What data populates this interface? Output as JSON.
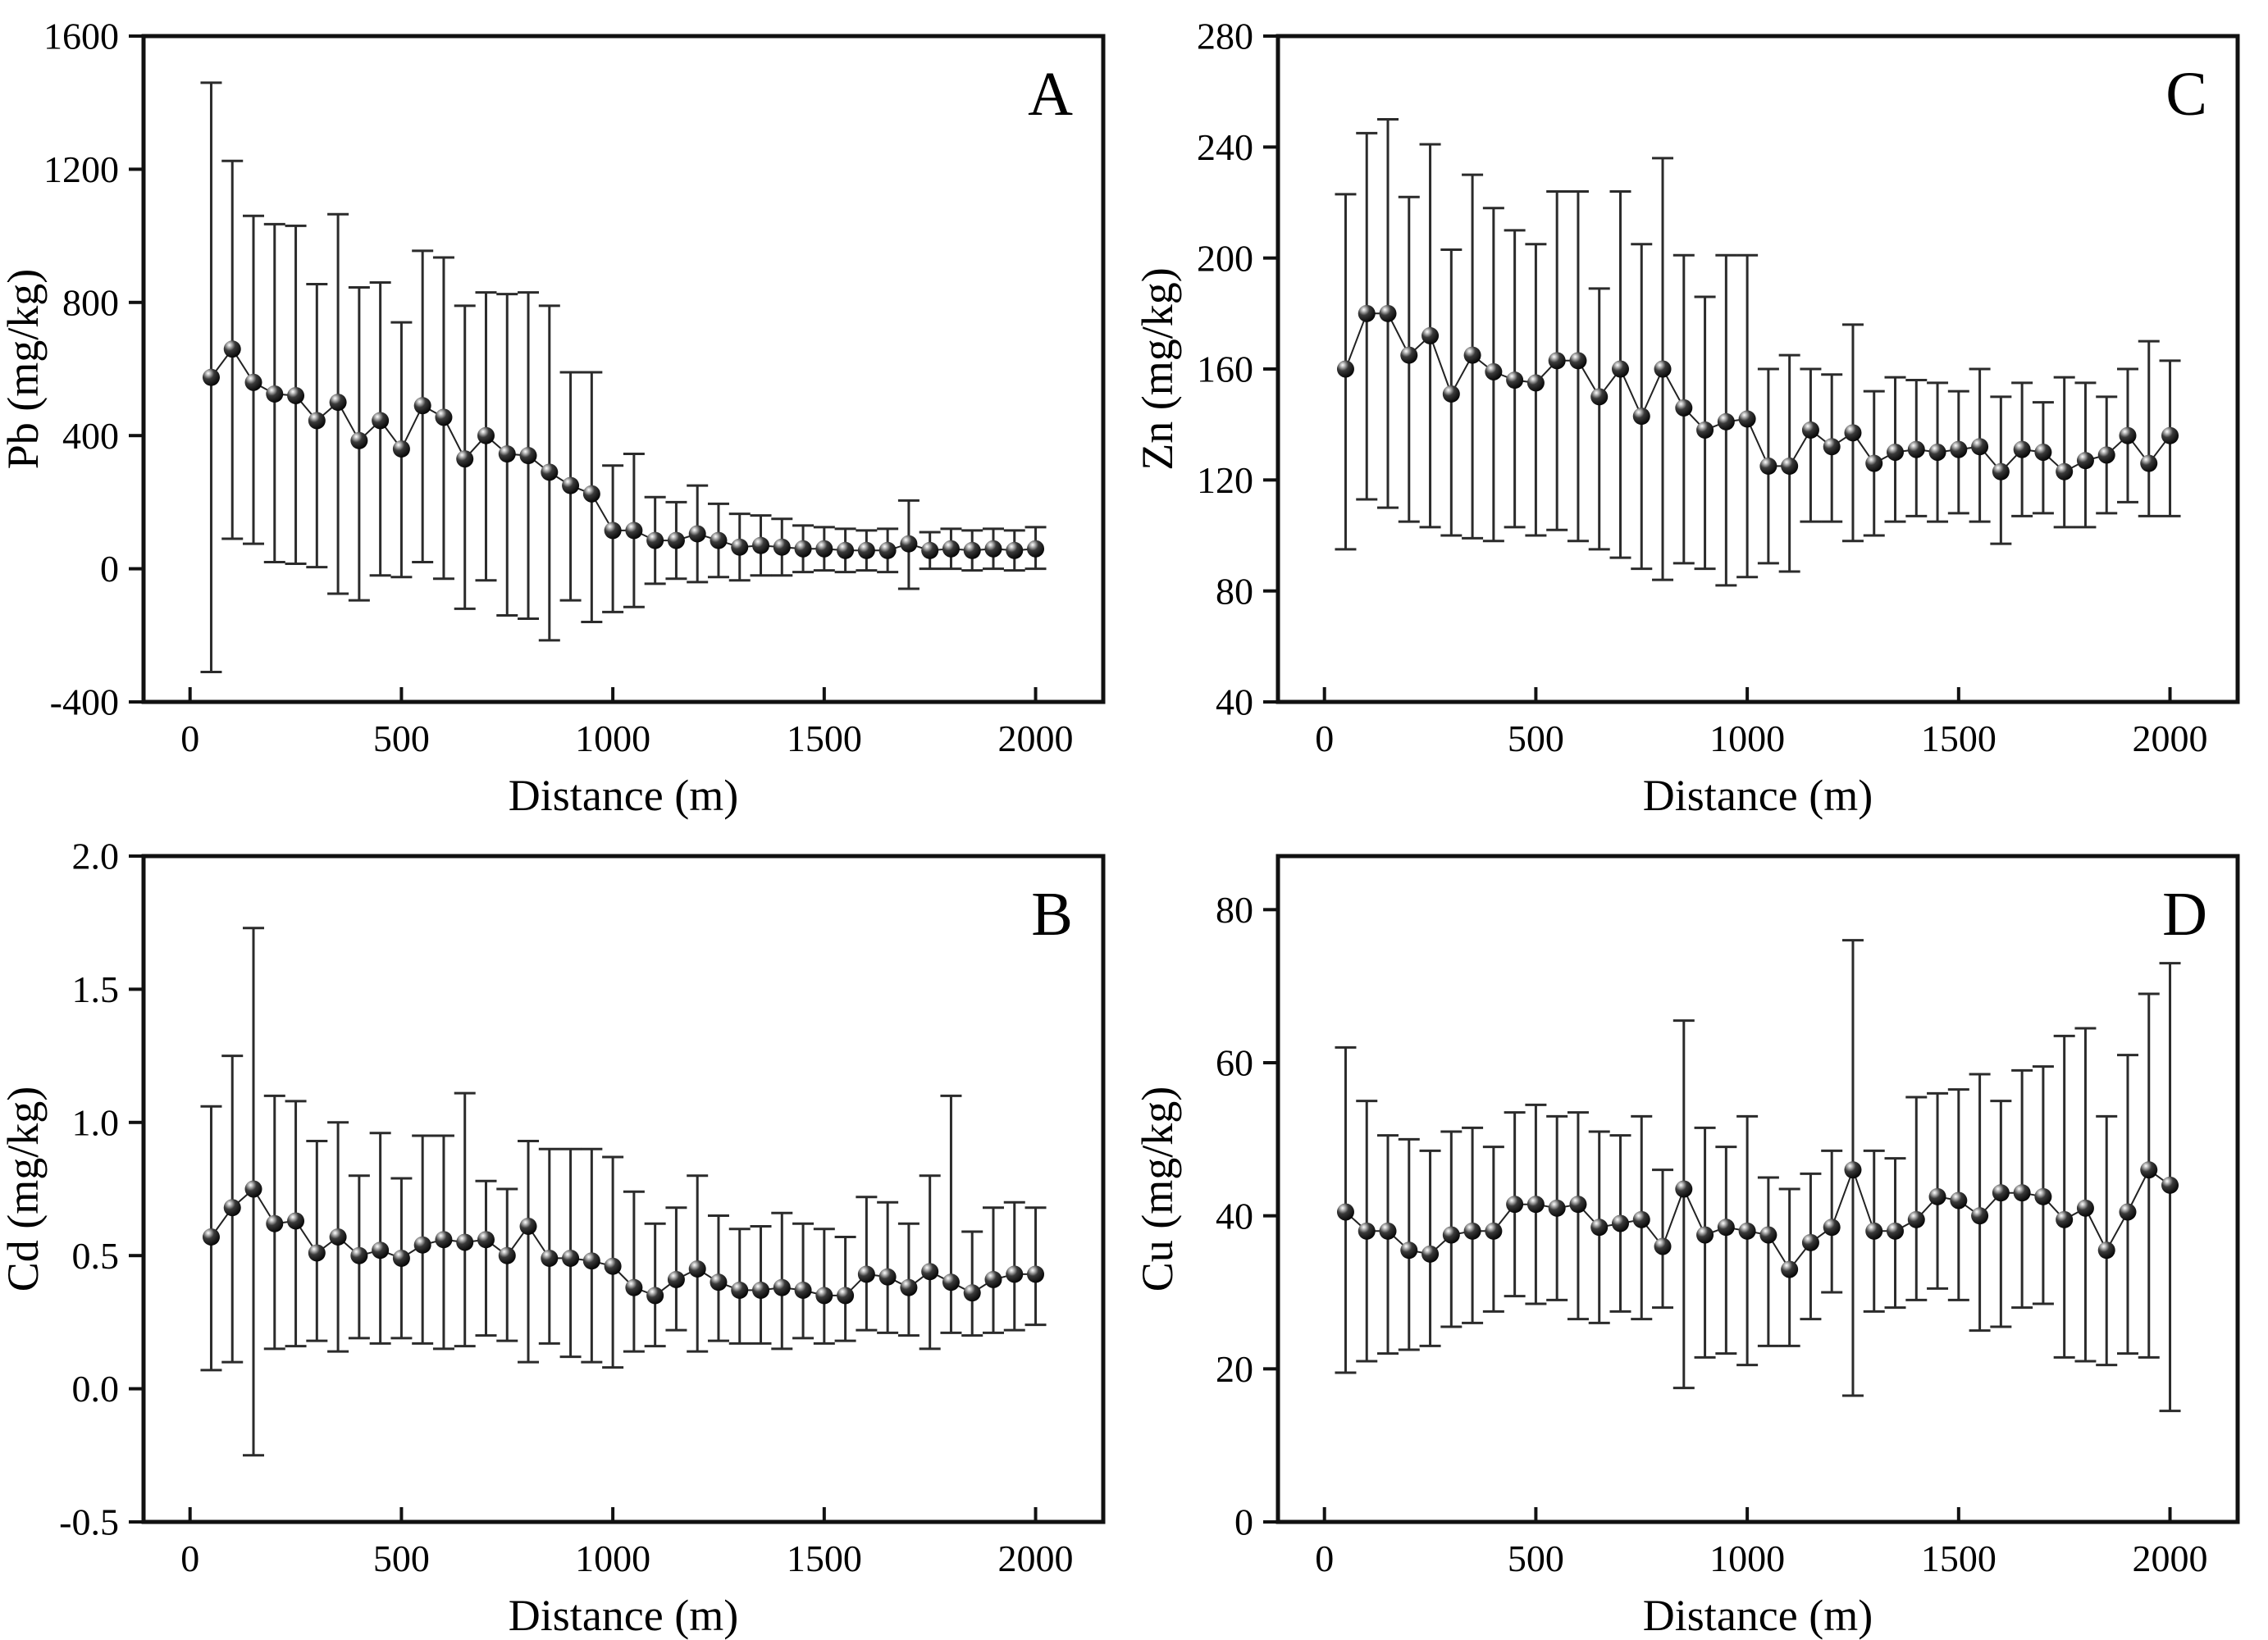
{
  "page": {
    "background": "#ffffff",
    "foreground": "#000000",
    "figure_type": "2x2 panel scatter plots with asymmetric error bars",
    "marker_style": "black-sphere-with-highlight"
  },
  "chart_data": [
    {
      "id": "pb",
      "panel_letter": "A",
      "type": "line",
      "position": "top-left",
      "xlabel": "Distance (m)",
      "ylabel": "Pb (mg/kg)",
      "xlim": [
        -110,
        2160
      ],
      "ylim": [
        -400,
        1600
      ],
      "xticks": [
        0,
        500,
        1000,
        1500,
        2000
      ],
      "xtick_labels": [
        "0",
        "500",
        "1000",
        "1500",
        "2000"
      ],
      "yticks": [
        -400,
        0,
        400,
        800,
        1200,
        1600
      ],
      "ytick_labels": [
        "-400",
        "0",
        "400",
        "800",
        "1200",
        "1600"
      ],
      "grid": "off",
      "legend": "none",
      "accent_color": "#000000",
      "x": [
        50,
        100,
        150,
        200,
        250,
        300,
        350,
        400,
        450,
        500,
        550,
        600,
        650,
        700,
        750,
        800,
        850,
        900,
        950,
        1000,
        1050,
        1100,
        1150,
        1200,
        1250,
        1300,
        1350,
        1400,
        1450,
        1500,
        1550,
        1600,
        1650,
        1700,
        1750,
        1800,
        1850,
        1900,
        1950,
        2000
      ],
      "y": [
        575,
        660,
        560,
        525,
        520,
        445,
        500,
        385,
        445,
        360,
        490,
        455,
        330,
        400,
        345,
        340,
        290,
        250,
        225,
        115,
        115,
        85,
        85,
        105,
        85,
        65,
        70,
        65,
        60,
        60,
        55,
        55,
        55,
        75,
        55,
        60,
        55,
        60,
        55,
        60
      ],
      "err_top": [
        1460,
        1225,
        1060,
        1035,
        1030,
        855,
        1065,
        845,
        860,
        740,
        955,
        935,
        790,
        830,
        825,
        830,
        790,
        590,
        590,
        310,
        345,
        215,
        200,
        250,
        195,
        165,
        160,
        150,
        130,
        125,
        120,
        115,
        120,
        205,
        110,
        120,
        115,
        120,
        115,
        125
      ],
      "err_bottom": [
        -310,
        90,
        75,
        20,
        15,
        5,
        -75,
        -95,
        -20,
        -25,
        20,
        -30,
        -120,
        -35,
        -140,
        -150,
        -215,
        -95,
        -160,
        -130,
        -115,
        -45,
        -30,
        -40,
        -25,
        -35,
        -20,
        -20,
        -10,
        -5,
        -10,
        -5,
        -10,
        -60,
        0,
        0,
        -5,
        0,
        -5,
        0
      ]
    },
    {
      "id": "zn",
      "panel_letter": "C",
      "type": "line",
      "position": "top-right",
      "xlabel": "Distance (m)",
      "ylabel": "Zn (mg/kg)",
      "xlim": [
        -110,
        2160
      ],
      "ylim": [
        40,
        280
      ],
      "xticks": [
        0,
        500,
        1000,
        1500,
        2000
      ],
      "xtick_labels": [
        "0",
        "500",
        "1000",
        "1500",
        "2000"
      ],
      "yticks": [
        40,
        80,
        120,
        160,
        200,
        240,
        280
      ],
      "ytick_labels": [
        "40",
        "80",
        "120",
        "160",
        "200",
        "240",
        "280"
      ],
      "grid": "off",
      "legend": "none",
      "accent_color": "#000000",
      "x": [
        50,
        100,
        150,
        200,
        250,
        300,
        350,
        400,
        450,
        500,
        550,
        600,
        650,
        700,
        750,
        800,
        850,
        900,
        950,
        1000,
        1050,
        1100,
        1150,
        1200,
        1250,
        1300,
        1350,
        1400,
        1450,
        1500,
        1550,
        1600,
        1650,
        1700,
        1750,
        1800,
        1850,
        1900,
        1950,
        2000
      ],
      "y": [
        160,
        180,
        180,
        165,
        172,
        151,
        165,
        159,
        156,
        155,
        163,
        163,
        150,
        160,
        143,
        160,
        146,
        138,
        141,
        142,
        125,
        125,
        138,
        132,
        137,
        126,
        130,
        131,
        130,
        131,
        132,
        123,
        131,
        130,
        123,
        127,
        129,
        136,
        126,
        136
      ],
      "err_top": [
        223,
        245,
        250,
        222,
        241,
        203,
        230,
        218,
        210,
        205,
        224,
        224,
        189,
        224,
        205,
        236,
        201,
        186,
        201,
        201,
        160,
        165,
        160,
        158,
        176,
        152,
        157,
        156,
        155,
        152,
        160,
        150,
        155,
        148,
        157,
        155,
        150,
        160,
        170,
        163
      ],
      "err_bottom": [
        95,
        113,
        110,
        105,
        103,
        100,
        99,
        98,
        103,
        100,
        102,
        98,
        95,
        92,
        88,
        84,
        90,
        88,
        82,
        85,
        90,
        87,
        105,
        105,
        98,
        100,
        105,
        107,
        105,
        108,
        105,
        97,
        107,
        108,
        103,
        103,
        108,
        112,
        107,
        107
      ]
    },
    {
      "id": "cd",
      "panel_letter": "B",
      "type": "line",
      "position": "bottom-left",
      "xlabel": "Distance (m)",
      "ylabel": "Cd (mg/kg)",
      "xlim": [
        -110,
        2160
      ],
      "ylim": [
        -0.5,
        2.0
      ],
      "xticks": [
        0,
        500,
        1000,
        1500,
        2000
      ],
      "xtick_labels": [
        "0",
        "500",
        "1000",
        "1500",
        "2000"
      ],
      "yticks": [
        -0.5,
        0.0,
        0.5,
        1.0,
        1.5,
        2.0
      ],
      "ytick_labels": [
        "-0.5",
        "0.0",
        "0.5",
        "1.0",
        "1.5",
        "2.0"
      ],
      "grid": "off",
      "legend": "none",
      "accent_color": "#000000",
      "x": [
        50,
        100,
        150,
        200,
        250,
        300,
        350,
        400,
        450,
        500,
        550,
        600,
        650,
        700,
        750,
        800,
        850,
        900,
        950,
        1000,
        1050,
        1100,
        1150,
        1200,
        1250,
        1300,
        1350,
        1400,
        1450,
        1500,
        1550,
        1600,
        1650,
        1700,
        1750,
        1800,
        1850,
        1900,
        1950,
        2000
      ],
      "y": [
        0.57,
        0.68,
        0.75,
        0.62,
        0.63,
        0.51,
        0.57,
        0.5,
        0.52,
        0.49,
        0.54,
        0.56,
        0.55,
        0.56,
        0.5,
        0.61,
        0.49,
        0.49,
        0.48,
        0.46,
        0.38,
        0.35,
        0.41,
        0.45,
        0.4,
        0.37,
        0.37,
        0.38,
        0.37,
        0.35,
        0.35,
        0.43,
        0.42,
        0.38,
        0.44,
        0.4,
        0.36,
        0.41,
        0.43,
        0.43
      ],
      "err_top": [
        1.06,
        1.25,
        1.73,
        1.1,
        1.08,
        0.93,
        1.0,
        0.8,
        0.96,
        0.79,
        0.95,
        0.95,
        1.11,
        0.78,
        0.75,
        0.93,
        0.9,
        0.9,
        0.9,
        0.87,
        0.74,
        0.62,
        0.68,
        0.8,
        0.65,
        0.6,
        0.61,
        0.66,
        0.62,
        0.6,
        0.57,
        0.72,
        0.7,
        0.62,
        0.8,
        1.1,
        0.59,
        0.68,
        0.7,
        0.68
      ],
      "err_bottom": [
        0.07,
        0.1,
        -0.25,
        0.15,
        0.16,
        0.18,
        0.14,
        0.19,
        0.17,
        0.19,
        0.17,
        0.15,
        0.16,
        0.2,
        0.18,
        0.1,
        0.17,
        0.12,
        0.1,
        0.08,
        0.14,
        0.16,
        0.22,
        0.14,
        0.18,
        0.17,
        0.17,
        0.15,
        0.19,
        0.17,
        0.18,
        0.22,
        0.21,
        0.2,
        0.15,
        0.21,
        0.2,
        0.21,
        0.22,
        0.24
      ]
    },
    {
      "id": "cu",
      "panel_letter": "D",
      "type": "line",
      "position": "bottom-right",
      "xlabel": "Distance (m)",
      "ylabel": "Cu (mg/kg)",
      "xlim": [
        -110,
        2160
      ],
      "ylim": [
        0,
        87
      ],
      "xticks": [
        0,
        500,
        1000,
        1500,
        2000
      ],
      "xtick_labels": [
        "0",
        "500",
        "1000",
        "1500",
        "2000"
      ],
      "yticks": [
        0,
        20,
        40,
        60,
        80
      ],
      "ytick_labels": [
        "0",
        "20",
        "40",
        "60",
        "80"
      ],
      "grid": "off",
      "legend": "none",
      "accent_color": "#000000",
      "x": [
        50,
        100,
        150,
        200,
        250,
        300,
        350,
        400,
        450,
        500,
        550,
        600,
        650,
        700,
        750,
        800,
        850,
        900,
        950,
        1000,
        1050,
        1100,
        1150,
        1200,
        1250,
        1300,
        1350,
        1400,
        1450,
        1500,
        1550,
        1600,
        1650,
        1700,
        1750,
        1800,
        1850,
        1900,
        1950,
        2000
      ],
      "y": [
        40.5,
        38,
        38,
        35.5,
        35,
        37.5,
        38,
        38,
        41.5,
        41.5,
        41,
        41.5,
        38.5,
        39,
        39.5,
        36,
        43.5,
        37.5,
        38.5,
        38,
        37.5,
        33,
        36.5,
        38.5,
        46,
        38,
        38,
        39.5,
        42.5,
        42,
        40,
        43,
        43,
        42.5,
        39.5,
        41,
        35.5,
        40.5,
        46,
        44
      ],
      "err_top": [
        62,
        55,
        50.5,
        50,
        48.5,
        51,
        51.5,
        49,
        53.5,
        54.5,
        53,
        53.5,
        51,
        50.5,
        53,
        46,
        65.5,
        51.5,
        49,
        53,
        45,
        43.5,
        45.5,
        48.5,
        76,
        48.5,
        47.5,
        55.5,
        56,
        56.5,
        58.5,
        55,
        59,
        59.5,
        63.5,
        64.5,
        53,
        61,
        69,
        73
      ],
      "err_bottom": [
        19.5,
        21,
        22,
        22.5,
        23,
        25.5,
        26,
        27.5,
        29.5,
        28.5,
        29,
        26.5,
        26,
        27.5,
        26.5,
        28,
        17.5,
        21.5,
        22,
        20.5,
        23,
        23,
        26.5,
        30,
        16.5,
        27.5,
        28,
        29,
        30.5,
        29,
        25,
        25.5,
        28,
        28.5,
        21.5,
        21,
        20.5,
        22,
        21.5,
        14.5
      ]
    }
  ]
}
